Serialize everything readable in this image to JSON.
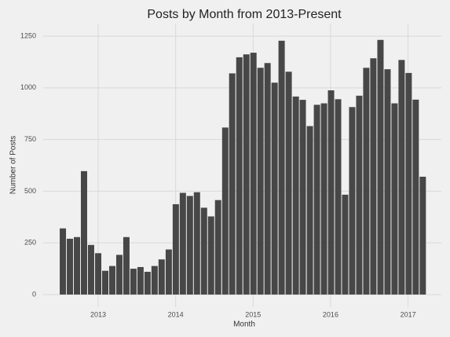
{
  "chart_data": {
    "type": "bar",
    "title": "Posts by Month from 2013-Present",
    "x_label": "Month",
    "y_label": "Number of Posts",
    "color": "#474747",
    "grid": true,
    "x": [
      2012.544,
      2012.635,
      2012.726,
      2012.817,
      2012.908,
      2013.0,
      2013.091,
      2013.182,
      2013.273,
      2013.364,
      2013.455,
      2013.546,
      2013.637,
      2013.728,
      2013.819,
      2013.911,
      2014.002,
      2014.093,
      2014.184,
      2014.275,
      2014.366,
      2014.457,
      2014.548,
      2014.64,
      2014.73,
      2014.822,
      2014.913,
      2015.004,
      2015.095,
      2015.186,
      2015.277,
      2015.368,
      2015.459,
      2015.551,
      2015.641,
      2015.733,
      2015.824,
      2015.915,
      2016.006,
      2016.097,
      2016.188,
      2016.279,
      2016.37,
      2016.461,
      2016.552,
      2016.644,
      2016.735,
      2016.826,
      2016.917,
      2017.008,
      2017.099,
      2017.19
    ],
    "values": [
      320,
      270,
      278,
      597,
      240,
      200,
      115,
      138,
      192,
      278,
      125,
      133,
      110,
      138,
      170,
      218,
      437,
      492,
      477,
      495,
      420,
      378,
      457,
      808,
      1070,
      1148,
      1162,
      1170,
      1097,
      1120,
      1025,
      1228,
      1078,
      958,
      942,
      815,
      918,
      925,
      988,
      945,
      483,
      907,
      962,
      1097,
      1143,
      1232,
      1090,
      925,
      1135,
      1072,
      943,
      570
    ],
    "xlim": [
      2012.29,
      2017.43
    ],
    "xticks": [
      2013,
      2014,
      2015,
      2016,
      2017
    ],
    "ylim": [
      -61,
      1311
    ],
    "yticks": [
      0,
      250,
      500,
      750,
      1000,
      1250
    ]
  }
}
